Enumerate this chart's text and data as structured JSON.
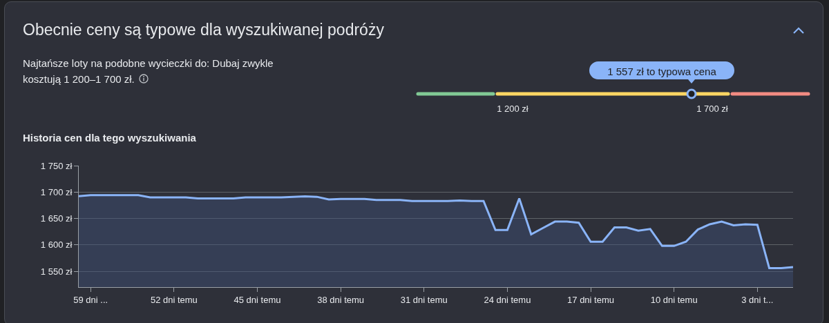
{
  "chart_data": {
    "type": "area",
    "title": "Obecnie ceny są typowe dla wyszukiwanej podróży",
    "subtitle": "Najtańsze loty na podobne wycieczki do: Dubaj zwykle kosztują 1 200–1 700 zł.",
    "annotations": [
      "Historia cen dla tego wyszukiwania",
      "1 557 zł to typowa cena",
      "1 200 zł",
      "1 700 zł"
    ],
    "x": [
      -60,
      -59,
      -58,
      -57,
      -56,
      -55,
      -54,
      -53,
      -52,
      -51,
      -50,
      -49,
      -48,
      -47,
      -46,
      -45,
      -44,
      -43,
      -42,
      -41,
      -40,
      -39,
      -38,
      -37,
      -36,
      -35,
      -34,
      -33,
      -32,
      -31,
      -30,
      -29,
      -28,
      -27,
      -26,
      -25,
      -24,
      -23,
      -22,
      -21,
      -20,
      -19,
      -18,
      -17,
      -16,
      -15,
      -14,
      -13,
      -12,
      -11,
      -10,
      -9,
      -8,
      -7,
      -6,
      -5,
      -4,
      -3,
      -2,
      -1,
      0
    ],
    "series": [
      {
        "color": "#8ab4f8",
        "values": [
          1692,
          1694,
          1694,
          1694,
          1694,
          1694,
          1690,
          1690,
          1690,
          1690,
          1688,
          1688,
          1688,
          1688,
          1690,
          1690,
          1690,
          1690,
          1691,
          1692,
          1691,
          1686,
          1687,
          1687,
          1687,
          1685,
          1685,
          1685,
          1683,
          1683,
          1683,
          1683,
          1684,
          1683,
          1683,
          1628,
          1628,
          1688,
          1620,
          1632,
          1644,
          1644,
          1642,
          1606,
          1606,
          1633,
          1633,
          1627,
          1630,
          1598,
          1598,
          1606,
          1629,
          1639,
          1644,
          1637,
          1639,
          1638,
          1556,
          1556,
          1558
        ]
      }
    ],
    "xlim": [
      -60,
      0
    ],
    "xticks": [
      {
        "value": -59,
        "label": "59 dni ..."
      },
      {
        "value": -52,
        "label": "52 dni temu"
      },
      {
        "value": -45,
        "label": "45 dni temu"
      },
      {
        "value": -38,
        "label": "38 dni temu"
      },
      {
        "value": -31,
        "label": "31 dni temu"
      },
      {
        "value": -24,
        "label": "24 dni temu"
      },
      {
        "value": -17,
        "label": "17 dni temu"
      },
      {
        "value": -10,
        "label": "10 dni temu"
      },
      {
        "value": -3,
        "label": "3 dni t..."
      }
    ],
    "ylim": [
      1520,
      1750
    ],
    "yticks": [
      {
        "value": 1550,
        "label": "1 550 zł"
      },
      {
        "value": 1600,
        "label": "1 600 zł"
      },
      {
        "value": 1650,
        "label": "1 650 zł"
      },
      {
        "value": 1700,
        "label": "1 700 zł"
      },
      {
        "value": 1750,
        "label": "1 750 zł"
      }
    ],
    "grid": "y"
  }
}
